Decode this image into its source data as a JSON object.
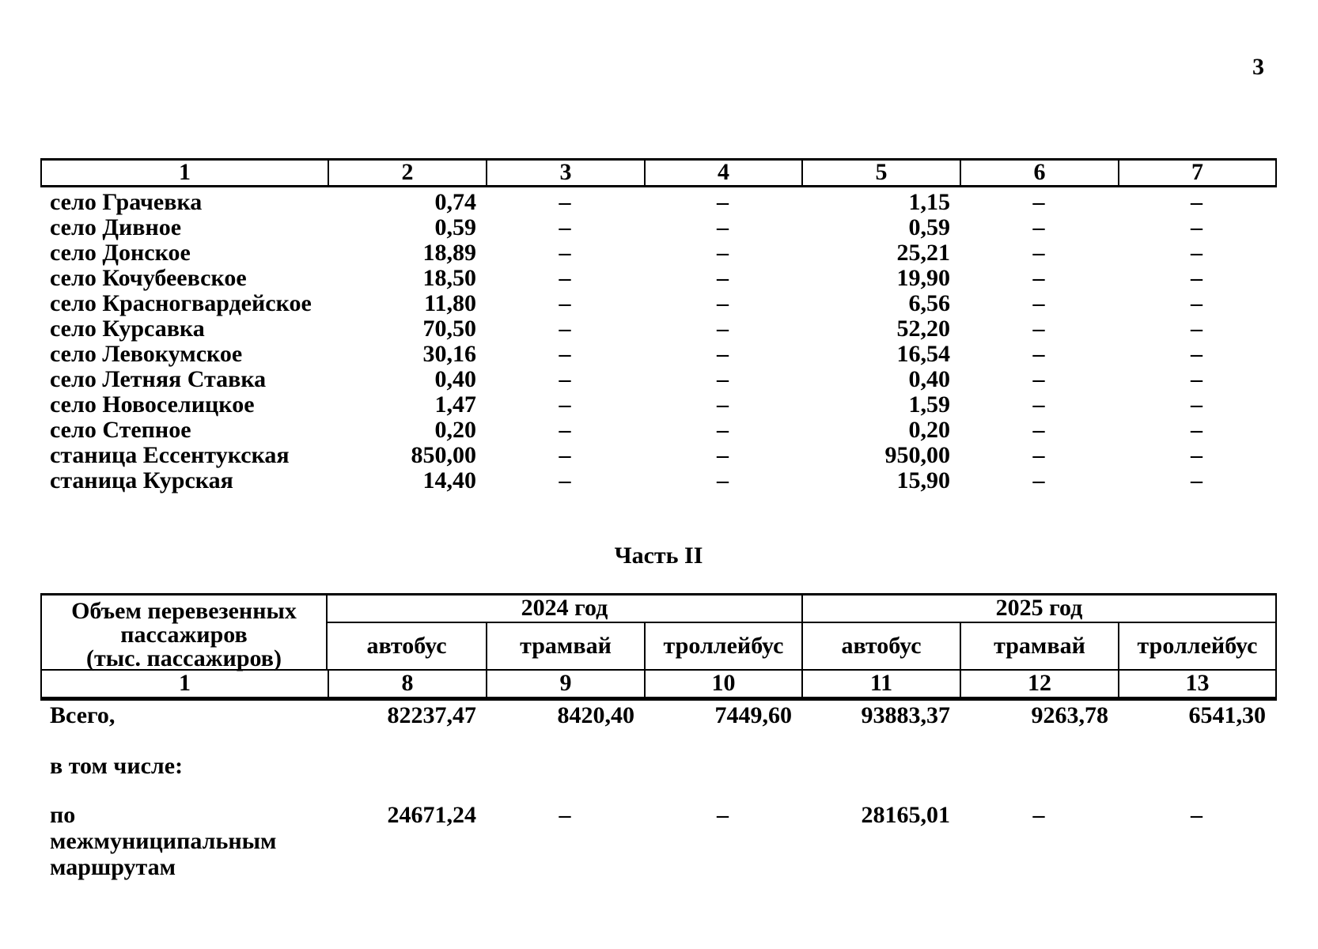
{
  "page": {
    "number": "3"
  },
  "table1": {
    "column_numbers": [
      "1",
      "2",
      "3",
      "4",
      "5",
      "6",
      "7"
    ],
    "rows": [
      {
        "name": "село Грачевка",
        "c2": "0,74",
        "c3": "–",
        "c4": "–",
        "c5": "1,15",
        "c6": "–",
        "c7": "–"
      },
      {
        "name": "село Дивное",
        "c2": "0,59",
        "c3": "–",
        "c4": "–",
        "c5": "0,59",
        "c6": "–",
        "c7": "–"
      },
      {
        "name": "село Донское",
        "c2": "18,89",
        "c3": "–",
        "c4": "–",
        "c5": "25,21",
        "c6": "–",
        "c7": "–"
      },
      {
        "name": "село Кочубеевское",
        "c2": "18,50",
        "c3": "–",
        "c4": "–",
        "c5": "19,90",
        "c6": "–",
        "c7": "–"
      },
      {
        "name": "село Красногвардейское",
        "c2": "11,80",
        "c3": "–",
        "c4": "–",
        "c5": "6,56",
        "c6": "–",
        "c7": "–"
      },
      {
        "name": "село Курсавка",
        "c2": "70,50",
        "c3": "–",
        "c4": "–",
        "c5": "52,20",
        "c6": "–",
        "c7": "–"
      },
      {
        "name": "село Левокумское",
        "c2": "30,16",
        "c3": "–",
        "c4": "–",
        "c5": "16,54",
        "c6": "–",
        "c7": "–"
      },
      {
        "name": "село Летняя Ставка",
        "c2": "0,40",
        "c3": "–",
        "c4": "–",
        "c5": "0,40",
        "c6": "–",
        "c7": "–"
      },
      {
        "name": "село Новоселицкое",
        "c2": "1,47",
        "c3": "–",
        "c4": "–",
        "c5": "1,59",
        "c6": "–",
        "c7": "–"
      },
      {
        "name": "село Степное",
        "c2": "0,20",
        "c3": "–",
        "c4": "–",
        "c5": "0,20",
        "c6": "–",
        "c7": "–"
      },
      {
        "name": "станица Ессентукская",
        "c2": "850,00",
        "c3": "–",
        "c4": "–",
        "c5": "950,00",
        "c6": "–",
        "c7": "–"
      },
      {
        "name": "станица Курская",
        "c2": "14,40",
        "c3": "–",
        "c4": "–",
        "c5": "15,90",
        "c6": "–",
        "c7": "–"
      }
    ]
  },
  "part2": {
    "title": "Часть II",
    "table2": {
      "col1_header_lines": [
        "Объем перевезенных",
        "пассажиров",
        "(тыс. пассажиров)"
      ],
      "year_2024": "2024 год",
      "year_2025": "2025 год",
      "transport_2024": [
        "автобус",
        "трамвай",
        "троллейбус"
      ],
      "transport_2025": [
        "автобус",
        "трамвай",
        "троллейбус"
      ],
      "column_numbers": [
        "1",
        "8",
        "9",
        "10",
        "11",
        "12",
        "13"
      ],
      "totals_row": {
        "label": "Всего,",
        "c8": "82237,47",
        "c9": "8420,40",
        "c10": "7449,60",
        "c11": "93883,37",
        "c12": "9263,78",
        "c13": "6541,30"
      },
      "including_label": "в том числе:",
      "intermunicipal_row": {
        "label": "по межмуниципальным маршрутам",
        "c8": "24671,24",
        "c9": "–",
        "c10": "–",
        "c11": "28165,01",
        "c12": "–",
        "c13": "–"
      }
    }
  }
}
